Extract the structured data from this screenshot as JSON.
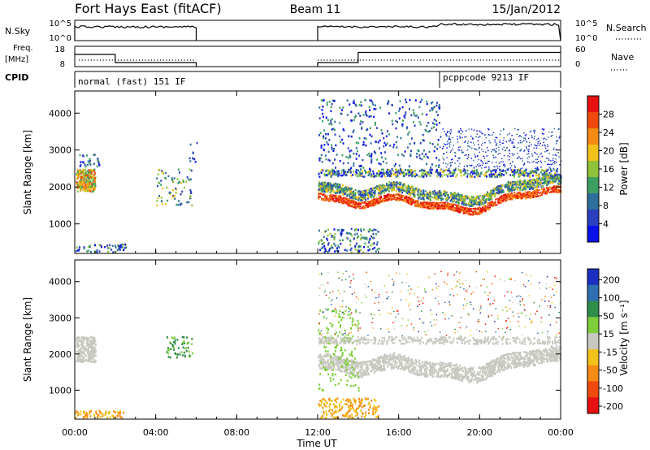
{
  "header": {
    "station": "Fort Hays East (fitACF)",
    "beam": "Beam 11",
    "date": "15/Jan/2012"
  },
  "side_labels": {
    "nsky": "N.Sky",
    "freq_line1": "Freq.",
    "freq_line2": "[MHz]",
    "cpid": "CPID",
    "nsearch": "N.Search",
    "nave": "Nave"
  },
  "colors": {
    "power_scale": [
      "#0a10e8",
      "#2b3fbf",
      "#2d6f9a",
      "#3e9f63",
      "#8fc23a",
      "#f2c21a",
      "#f58a14",
      "#ef4a0c",
      "#e81010"
    ],
    "velocity_scale": [
      "#1a2fbf",
      "#2d6fb0",
      "#2e8e4a",
      "#7fcf3a",
      "#c8c8c0",
      "#f2c21a",
      "#f58a14",
      "#ef4a0c",
      "#e81010"
    ]
  },
  "chart_data": [
    {
      "type": "line",
      "panel": "N.Sky / N.Search",
      "y_tick_labels_left": [
        "10^5",
        "10^0"
      ],
      "y_tick_labels_right": [
        "10^5",
        "10^0"
      ],
      "segments": [
        {
          "x_start_ut": "00:00",
          "x_end_ut": "06:00"
        },
        {
          "x_start_ut": "12:00",
          "x_end_ut": "24:00"
        }
      ]
    },
    {
      "type": "line",
      "panel": "Freq. / Nave",
      "y_tick_labels_left": [
        "18",
        "8"
      ],
      "y_tick_labels_right": [
        "60",
        "0"
      ],
      "series": [
        {
          "name": "Freq. [MHz]",
          "style": "solid",
          "points": [
            [
              "00:00",
              14
            ],
            [
              "02:00",
              14
            ],
            [
              "02:00",
              10
            ],
            [
              "06:00",
              10
            ],
            [
              "12:00",
              10
            ],
            [
              "14:00",
              10
            ],
            [
              "14:00",
              15
            ],
            [
              "24:00",
              15
            ]
          ]
        },
        {
          "name": "Nave",
          "style": "dotted",
          "points": [
            [
              "00:00",
              18
            ],
            [
              "06:00",
              18
            ],
            [
              "12:00",
              18
            ],
            [
              "24:00",
              18
            ]
          ]
        }
      ]
    },
    {
      "type": "table",
      "panel": "CPID",
      "entries": [
        {
          "label": "normal (fast) 151 IF",
          "start_ut": "00:00"
        },
        {
          "label": "pcppcode 9213 IF",
          "start_ut": "18:00"
        }
      ]
    },
    {
      "type": "heatmap",
      "title": "Power",
      "ylabel": "Slant Range [km]",
      "ylim": [
        200,
        4600
      ],
      "y_ticks": [
        1000,
        2000,
        3000,
        4000
      ],
      "colorbar_label": "Power [dB]",
      "colorbar_ticks": [
        "4",
        "8",
        "12",
        "16",
        "20",
        "24",
        "28"
      ],
      "colorbar_range": [
        0,
        32
      ]
    },
    {
      "type": "heatmap",
      "title": "Velocity",
      "ylabel": "Slant Range [km]",
      "ylim": [
        200,
        4600
      ],
      "y_ticks": [
        1000,
        2000,
        3000,
        4000
      ],
      "colorbar_label": "Velocity [m s⁻¹]",
      "colorbar_ticks": [
        "200",
        "100",
        "50",
        "15",
        "-15",
        "-50",
        "-100",
        "-200"
      ]
    }
  ],
  "x_axis": {
    "label": "Time UT",
    "range_hours": [
      0,
      24
    ],
    "ticks": [
      "00:00",
      "04:00",
      "08:00",
      "12:00",
      "16:00",
      "20:00",
      "00:00"
    ]
  }
}
